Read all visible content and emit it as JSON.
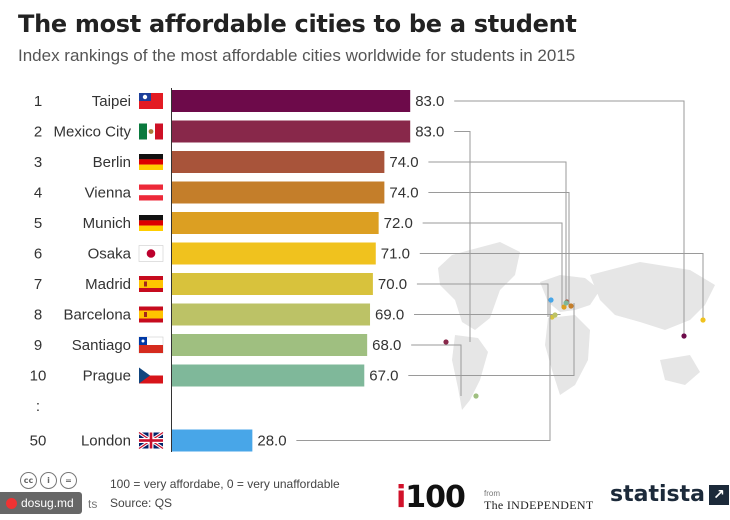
{
  "title": "The most affordable cities to be a student",
  "subtitle": "Index rankings of the most affordable cities worldwide for students in 2015",
  "chart_data": {
    "type": "bar",
    "orientation": "horizontal",
    "rows": [
      {
        "rank": "1",
        "city": "Taipei",
        "value": 83.0,
        "label": "83.0",
        "color": "#6d0a4a",
        "flag": "taiwan-flag"
      },
      {
        "rank": "2",
        "city": "Mexico City",
        "value": 83.0,
        "label": "83.0",
        "color": "#88284a",
        "flag": "mexico-flag"
      },
      {
        "rank": "3",
        "city": "Berlin",
        "value": 74.0,
        "label": "74.0",
        "color": "#a8543a",
        "flag": "germany-flag"
      },
      {
        "rank": "4",
        "city": "Vienna",
        "value": 74.0,
        "label": "74.0",
        "color": "#c47e2a",
        "flag": "austria-flag"
      },
      {
        "rank": "5",
        "city": "Munich",
        "value": 72.0,
        "label": "72.0",
        "color": "#dc9f22",
        "flag": "germany-flag"
      },
      {
        "rank": "6",
        "city": "Osaka",
        "value": 71.0,
        "label": "71.0",
        "color": "#f0c21e",
        "flag": "japan-flag"
      },
      {
        "rank": "7",
        "city": "Madrid",
        "value": 70.0,
        "label": "70.0",
        "color": "#d8c23c",
        "flag": "spain-flag"
      },
      {
        "rank": "8",
        "city": "Barcelona",
        "value": 69.0,
        "label": "69.0",
        "color": "#bcc266",
        "flag": "spain-flag"
      },
      {
        "rank": "9",
        "city": "Santiago",
        "value": 68.0,
        "label": "68.0",
        "color": "#9fbf80",
        "flag": "chile-flag"
      },
      {
        "rank": "10",
        "city": "Prague",
        "value": 67.0,
        "label": "67.0",
        "color": "#7fb89a",
        "flag": "czech-flag"
      },
      {
        "rank": ":",
        "city": "",
        "value": null,
        "label": "",
        "color": "",
        "flag": ""
      },
      {
        "rank": "50",
        "city": "London",
        "value": 28.0,
        "label": "28.0",
        "color": "#48a6e8",
        "flag": "uk-flag"
      }
    ],
    "xlim": [
      0,
      100
    ],
    "legend_note": "100 = very affordabe, 0 = very unaffordable",
    "map": "world-map-with-city-markers"
  },
  "footer": {
    "note": "100 = very affordabe, 0 = very unaffordable",
    "source": "Source: QS",
    "cc_icons": [
      "cc-icon",
      "by-icon",
      "nd-icon"
    ],
    "watermark": "dosug.md",
    "watermark_tail": "ts",
    "brand_i100": "100",
    "brand_i": "i",
    "brand_from": "from",
    "brand_independent": "The INDEPENDENT",
    "brand_statista": "statista"
  }
}
